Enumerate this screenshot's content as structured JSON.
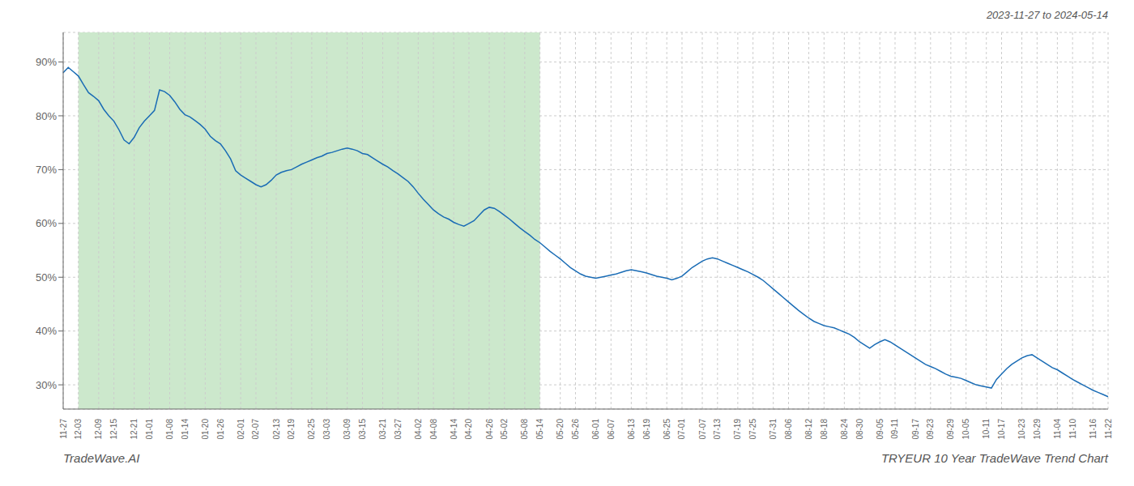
{
  "chart_data": {
    "type": "line",
    "title": "TRYEUR 10 Year TradeWave Trend Chart",
    "subtitle": "2023-11-27 to 2024-05-14",
    "annotations": [
      "TradeWave.AI"
    ],
    "color": "#1a6cb5",
    "grid": true,
    "shaded_region": {
      "from": "12-03",
      "to": "05-14",
      "color": "#cce8cc"
    },
    "ylim": [
      0.255,
      0.955
    ],
    "yticks": [
      {
        "value": 0.3,
        "label": "30%"
      },
      {
        "value": 0.4,
        "label": "40%"
      },
      {
        "value": 0.5,
        "label": "50%"
      },
      {
        "value": 0.6,
        "label": "60%"
      },
      {
        "value": 0.7,
        "label": "70%"
      },
      {
        "value": 0.8,
        "label": "80%"
      },
      {
        "value": 0.9,
        "label": "90%"
      }
    ],
    "categories": [
      "11-27",
      null,
      null,
      "12-03",
      null,
      null,
      null,
      "12-09",
      null,
      null,
      "12-15",
      null,
      null,
      null,
      "12-21",
      null,
      null,
      "01-01",
      null,
      null,
      null,
      "01-08",
      null,
      null,
      "01-14",
      null,
      null,
      null,
      "01-20",
      null,
      null,
      "01-26",
      null,
      null,
      null,
      "02-01",
      null,
      null,
      "02-07",
      null,
      null,
      null,
      "02-13",
      null,
      null,
      "02-19",
      null,
      null,
      null,
      "02-25",
      null,
      null,
      "03-03",
      null,
      null,
      null,
      "03-09",
      null,
      null,
      "03-15",
      null,
      null,
      null,
      "03-21",
      null,
      null,
      "03-27",
      null,
      null,
      null,
      "04-02",
      null,
      null,
      "04-08",
      null,
      null,
      null,
      "04-14",
      null,
      null,
      "04-20",
      null,
      null,
      null,
      "04-26",
      null,
      null,
      "05-02",
      null,
      null,
      null,
      "05-08",
      null,
      null,
      "05-14",
      null,
      null,
      null,
      "05-20",
      null,
      null,
      "05-26",
      null,
      null,
      null,
      "06-01",
      null,
      null,
      "06-07",
      null,
      null,
      null,
      "06-13",
      null,
      null,
      "06-19",
      null,
      null,
      null,
      "06-25",
      null,
      null,
      "07-01",
      null,
      null,
      null,
      "07-07",
      null,
      null,
      "07-13",
      null,
      null,
      null,
      "07-19",
      null,
      null,
      "07-25",
      null,
      null,
      null,
      "07-31",
      null,
      null,
      "08-06",
      null,
      null,
      null,
      "08-12",
      null,
      null,
      "08-18",
      null,
      null,
      null,
      "08-24",
      null,
      null,
      "08-30",
      null,
      null,
      null,
      "09-05",
      null,
      null,
      "09-11",
      null,
      null,
      null,
      "09-17",
      null,
      null,
      "09-23",
      null,
      null,
      null,
      "09-29",
      null,
      null,
      "10-05",
      null,
      null,
      null,
      "10-11",
      null,
      null,
      "10-17",
      null,
      null,
      null,
      "10-23",
      null,
      null,
      "10-29",
      null,
      null,
      null,
      "11-04",
      null,
      null,
      "11-10",
      null,
      null,
      null,
      "11-16",
      null,
      null,
      "11-22"
    ],
    "values": [
      0.88,
      0.89,
      0.882,
      0.874,
      0.858,
      0.843,
      0.836,
      0.828,
      0.812,
      0.8,
      0.79,
      0.774,
      0.755,
      0.748,
      0.76,
      0.778,
      0.79,
      0.8,
      0.81,
      0.848,
      0.845,
      0.838,
      0.826,
      0.812,
      0.802,
      0.798,
      0.791,
      0.784,
      0.775,
      0.762,
      0.754,
      0.748,
      0.735,
      0.72,
      0.698,
      0.69,
      0.684,
      0.678,
      0.672,
      0.668,
      0.672,
      0.68,
      0.69,
      0.695,
      0.698,
      0.7,
      0.705,
      0.71,
      0.714,
      0.718,
      0.722,
      0.725,
      0.73,
      0.732,
      0.735,
      0.738,
      0.74,
      0.738,
      0.735,
      0.73,
      0.728,
      0.722,
      0.716,
      0.71,
      0.705,
      0.698,
      0.692,
      0.685,
      0.678,
      0.668,
      0.656,
      0.645,
      0.635,
      0.625,
      0.618,
      0.612,
      0.608,
      0.602,
      0.598,
      0.595,
      0.6,
      0.605,
      0.615,
      0.625,
      0.63,
      0.628,
      0.622,
      0.615,
      0.608,
      0.6,
      0.592,
      0.585,
      0.578,
      0.57,
      0.564,
      0.556,
      0.548,
      0.541,
      0.534,
      0.526,
      0.518,
      0.512,
      0.506,
      0.502,
      0.5,
      0.498,
      0.5,
      0.502,
      0.504,
      0.506,
      0.509,
      0.512,
      0.514,
      0.512,
      0.51,
      0.508,
      0.505,
      0.502,
      0.5,
      0.498,
      0.495,
      0.498,
      0.502,
      0.51,
      0.518,
      0.524,
      0.53,
      0.534,
      0.536,
      0.534,
      0.53,
      0.526,
      0.522,
      0.518,
      0.514,
      0.51,
      0.505,
      0.5,
      0.494,
      0.486,
      0.478,
      0.47,
      0.462,
      0.454,
      0.446,
      0.438,
      0.431,
      0.424,
      0.418,
      0.414,
      0.41,
      0.408,
      0.406,
      0.402,
      0.398,
      0.394,
      0.388,
      0.38,
      0.374,
      0.368,
      0.375,
      0.38,
      0.384,
      0.38,
      0.374,
      0.368,
      0.362,
      0.356,
      0.35,
      0.344,
      0.338,
      0.334,
      0.33,
      0.325,
      0.32,
      0.316,
      0.314,
      0.312,
      0.308,
      0.304,
      0.3,
      0.298,
      0.296,
      0.294,
      0.31,
      0.32,
      0.33,
      0.338,
      0.344,
      0.35,
      0.354,
      0.356,
      0.35,
      0.344,
      0.338,
      0.332,
      0.328,
      0.322,
      0.316,
      0.31,
      0.305,
      0.3,
      0.295,
      0.29,
      0.286,
      0.282,
      0.278
    ]
  }
}
